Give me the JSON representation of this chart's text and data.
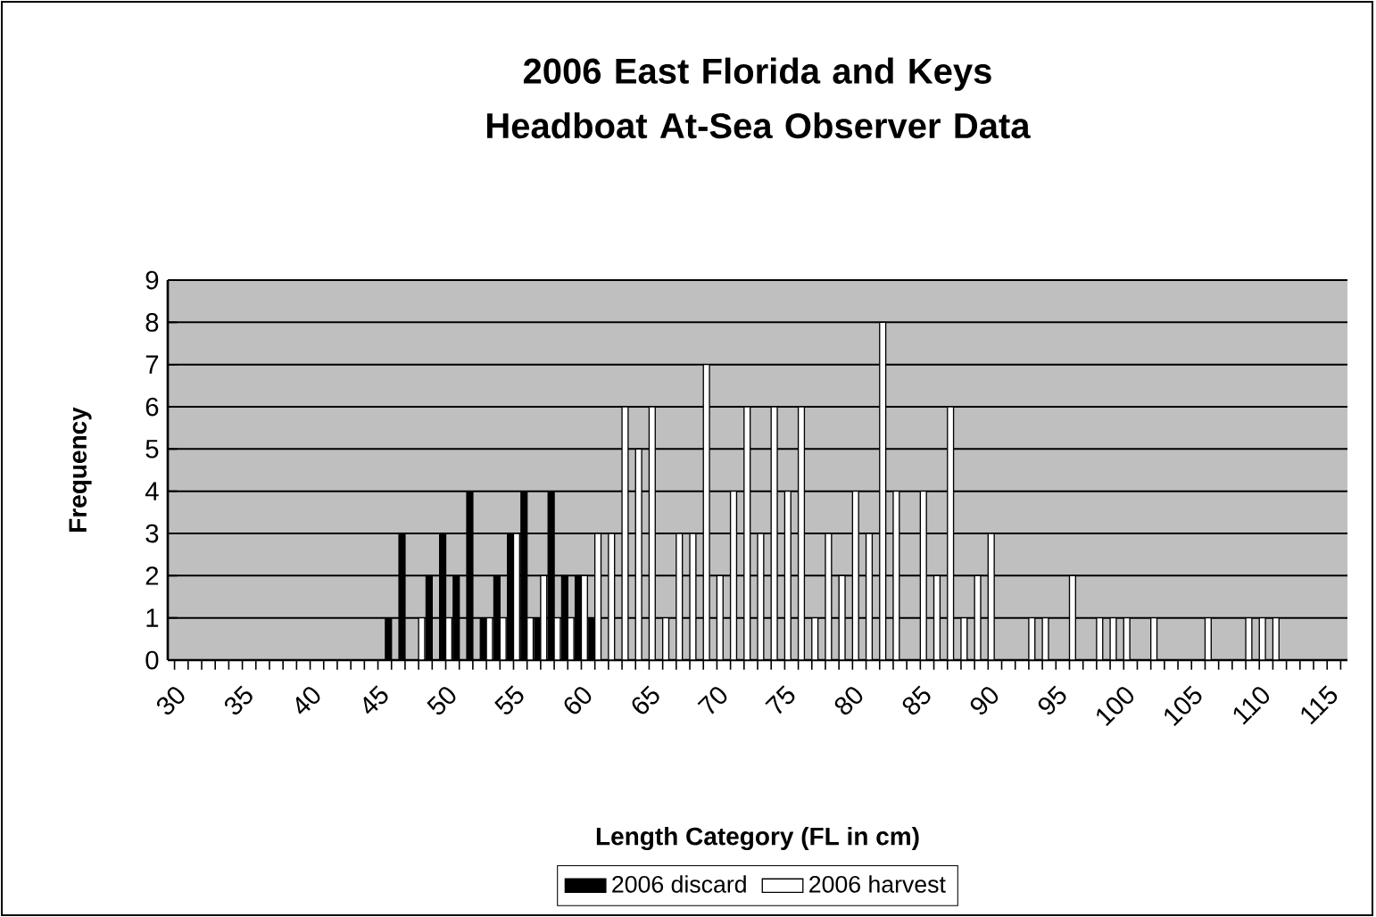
{
  "chart_data": {
    "type": "bar",
    "title": "2006 East Florida and Keys Headboat At-Sea Observer Data",
    "xlabel": "Length Category (FL in cm)",
    "ylabel": "Frequency",
    "categories": [
      "30",
      null,
      null,
      null,
      null,
      "35",
      null,
      null,
      null,
      null,
      "40",
      null,
      null,
      null,
      null,
      "45",
      null,
      null,
      null,
      null,
      "50",
      null,
      null,
      null,
      null,
      "55",
      null,
      null,
      null,
      null,
      "60",
      null,
      null,
      null,
      null,
      "65",
      null,
      null,
      null,
      null,
      "70",
      null,
      null,
      null,
      null,
      "75",
      null,
      null,
      null,
      null,
      "80",
      null,
      null,
      null,
      null,
      "85",
      null,
      null,
      null,
      null,
      "90",
      null,
      null,
      null,
      null,
      "95",
      null,
      null,
      null,
      null,
      "100",
      null,
      null,
      null,
      null,
      "105",
      null,
      null,
      null,
      null,
      "110",
      null,
      null,
      null,
      null,
      "115",
      null
    ],
    "series": [
      {
        "name": "2006 discard",
        "color": "#000000",
        "values": [
          0,
          0,
          0,
          0,
          0,
          0,
          0,
          0,
          0,
          0,
          0,
          0,
          0,
          0,
          0,
          0,
          1,
          3,
          0,
          2,
          3,
          2,
          4,
          1,
          2,
          3,
          4,
          1,
          4,
          2,
          2,
          1,
          0,
          0,
          0,
          0,
          0,
          0,
          0,
          0,
          0,
          0,
          0,
          0,
          0,
          0,
          0,
          0,
          0,
          0,
          0,
          0,
          0,
          0,
          0,
          0,
          0,
          0,
          0,
          0,
          0,
          0,
          0,
          0,
          0,
          0,
          0,
          0,
          0,
          0,
          0,
          0,
          0,
          0,
          0,
          0,
          0,
          0,
          0,
          0,
          0,
          0,
          0,
          0,
          0,
          0,
          0
        ]
      },
      {
        "name": "2006 harvest",
        "color": "#ffffff",
        "values": [
          0,
          0,
          0,
          0,
          0,
          0,
          0,
          0,
          0,
          0,
          0,
          0,
          0,
          0,
          0,
          0,
          0,
          0,
          1,
          0,
          1,
          0,
          0,
          1,
          1,
          3,
          1,
          2,
          1,
          1,
          2,
          3,
          3,
          6,
          5,
          6,
          1,
          3,
          3,
          7,
          2,
          4,
          6,
          3,
          6,
          4,
          6,
          1,
          3,
          2,
          4,
          3,
          8,
          4,
          0,
          4,
          2,
          6,
          1,
          2,
          3,
          0,
          0,
          1,
          1,
          0,
          2,
          0,
          1,
          1,
          1,
          0,
          1,
          0,
          0,
          0,
          1,
          0,
          0,
          1,
          1,
          1,
          0,
          0,
          0,
          0,
          0
        ]
      }
    ],
    "ylim": [
      0,
      9
    ],
    "yticks": [
      0,
      1,
      2,
      3,
      4,
      5,
      6,
      7,
      8,
      9
    ],
    "grid": "y",
    "legend": "bottom"
  }
}
